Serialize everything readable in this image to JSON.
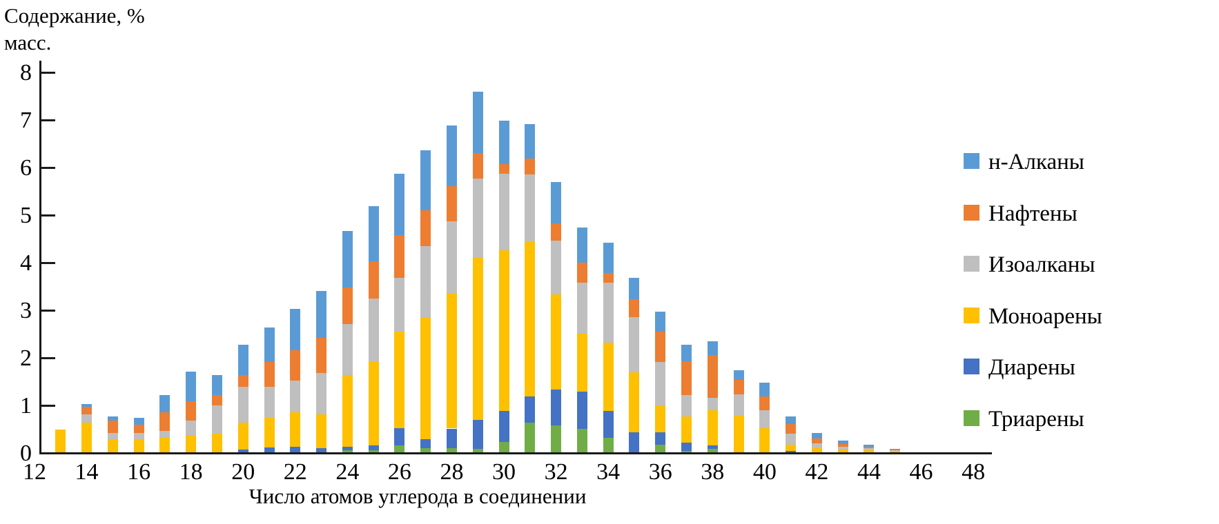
{
  "axis_titles": {
    "y_line1": "Содержание, %",
    "y_line2": "масс.",
    "x": "Число атомов углерода в соединении"
  },
  "chart_data": {
    "type": "bar",
    "stacked": true,
    "title": "",
    "xlabel": "Число атомов углерода в соединении",
    "ylabel": "Содержание, % масс.",
    "xlim": [
      12,
      48
    ],
    "ylim": [
      0,
      8
    ],
    "grid": false,
    "legend_position": "right",
    "stack_note": "series listed top-of-stack first; stacking bottom-up is reverse of this list",
    "xtick_labels": [
      "12",
      "14",
      "16",
      "18",
      "20",
      "22",
      "24",
      "26",
      "28",
      "30",
      "32",
      "34",
      "36",
      "38",
      "40",
      "42",
      "44",
      "46",
      "48"
    ],
    "ytick_labels": [
      "0",
      "1",
      "2",
      "3",
      "4",
      "5",
      "6",
      "7",
      "8"
    ],
    "x": [
      13,
      14,
      15,
      16,
      17,
      18,
      19,
      20,
      21,
      22,
      23,
      24,
      25,
      26,
      27,
      28,
      29,
      30,
      31,
      32,
      33,
      34,
      35,
      36,
      37,
      38,
      39,
      40,
      41,
      42,
      43,
      44,
      45
    ],
    "series": [
      {
        "name": "н-Алканы",
        "color": "#5B9BD5",
        "values": [
          0,
          0.06,
          0.08,
          0.15,
          0.36,
          0.62,
          0.42,
          0.63,
          0.72,
          0.87,
          0.98,
          1.18,
          1.15,
          1.29,
          1.26,
          1.28,
          1.29,
          0.91,
          0.73,
          0.87,
          0.74,
          0.63,
          0.44,
          0.43,
          0.34,
          0.29,
          0.21,
          0.28,
          0.15,
          0.12,
          0.07,
          0.04,
          0
        ]
      },
      {
        "name": "Нафтены",
        "color": "#ED7D31",
        "values": [
          0,
          0.16,
          0.27,
          0.17,
          0.39,
          0.4,
          0.22,
          0.26,
          0.53,
          0.63,
          0.75,
          0.77,
          0.79,
          0.91,
          0.75,
          0.74,
          0.53,
          0.2,
          0.33,
          0.36,
          0.42,
          0.21,
          0.38,
          0.63,
          0.72,
          0.9,
          0.3,
          0.3,
          0.21,
          0.1,
          0.05,
          0.03,
          0.03
        ]
      },
      {
        "name": "Изоалканы",
        "color": "#BFBFBF",
        "values": [
          0,
          0.16,
          0.13,
          0.13,
          0.13,
          0.31,
          0.59,
          0.74,
          0.64,
          0.67,
          0.86,
          1.07,
          1.33,
          1.13,
          1.5,
          1.5,
          1.66,
          1.62,
          1.42,
          1.13,
          1.08,
          1.26,
          1.16,
          0.92,
          0.45,
          0.26,
          0.45,
          0.37,
          0.23,
          0.1,
          0.06,
          0.04,
          0.02
        ]
      },
      {
        "name": "Моноарены",
        "color": "#FFC000",
        "values": [
          0.48,
          0.63,
          0.27,
          0.28,
          0.32,
          0.36,
          0.39,
          0.57,
          0.63,
          0.73,
          0.71,
          1.51,
          1.76,
          2.02,
          2.56,
          2.85,
          3.42,
          3.37,
          3.25,
          2.0,
          1.22,
          1.43,
          1.26,
          0.56,
          0.55,
          0.74,
          0.77,
          0.51,
          0.13,
          0.09,
          0.06,
          0.05,
          0.02
        ]
      },
      {
        "name": "Диарены",
        "color": "#4472C4",
        "values": [
          0,
          0,
          0,
          0,
          0,
          0,
          0,
          0.06,
          0.1,
          0.11,
          0.09,
          0.08,
          0.09,
          0.37,
          0.2,
          0.41,
          0.61,
          0.65,
          0.55,
          0.76,
          0.78,
          0.57,
          0.42,
          0.26,
          0.17,
          0.08,
          0,
          0,
          0.03,
          0,
          0,
          0,
          0
        ]
      },
      {
        "name": "Триарены",
        "color": "#70AD47",
        "values": [
          0,
          0,
          0,
          0,
          0,
          0,
          0,
          0,
          0,
          0,
          0,
          0.04,
          0.05,
          0.14,
          0.08,
          0.09,
          0.07,
          0.22,
          0.62,
          0.56,
          0.49,
          0.3,
          0,
          0.16,
          0.03,
          0.07,
          0,
          0,
          0,
          0,
          0,
          0,
          0
        ]
      }
    ]
  }
}
